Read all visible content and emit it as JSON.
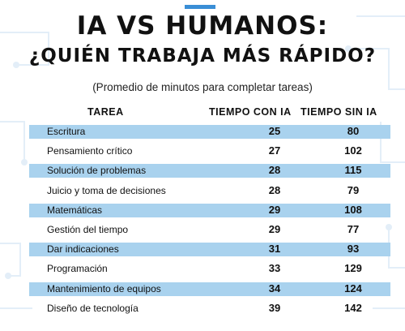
{
  "header": {
    "title_line1": "IA VS HUMANOS:",
    "title_line2": "¿QUIÉN TRABAJA MÁS RÁPIDO?",
    "subtitle": "(Promedio de minutos para completar tareas)"
  },
  "colors": {
    "stripe": "#a9d2ee",
    "accent": "#3a8ed6",
    "background_lines": "#e3eef8"
  },
  "chart_data": {
    "type": "table",
    "columns": [
      "TAREA",
      "TIEMPO CON IA",
      "TIEMPO SIN IA"
    ],
    "rows": [
      {
        "task": "Escritura",
        "with_ai": "25",
        "without_ai": "80"
      },
      {
        "task": "Pensamiento crítico",
        "with_ai": "27",
        "without_ai": "102"
      },
      {
        "task": "Solución de problemas",
        "with_ai": "28",
        "without_ai": "115"
      },
      {
        "task": "Juicio y toma de decisiones",
        "with_ai": "28",
        "without_ai": "79"
      },
      {
        "task": "Matemáticas",
        "with_ai": "29",
        "without_ai": "108"
      },
      {
        "task": "Gestión del tiempo",
        "with_ai": "29",
        "without_ai": "77"
      },
      {
        "task": "Dar indicaciones",
        "with_ai": "31",
        "without_ai": "93"
      },
      {
        "task": "Programación",
        "with_ai": "33",
        "without_ai": "129"
      },
      {
        "task": "Mantenimiento de equipos",
        "with_ai": "34",
        "without_ai": "124"
      },
      {
        "task": "Diseño de tecnología",
        "with_ai": "39",
        "without_ai": "142"
      }
    ]
  }
}
